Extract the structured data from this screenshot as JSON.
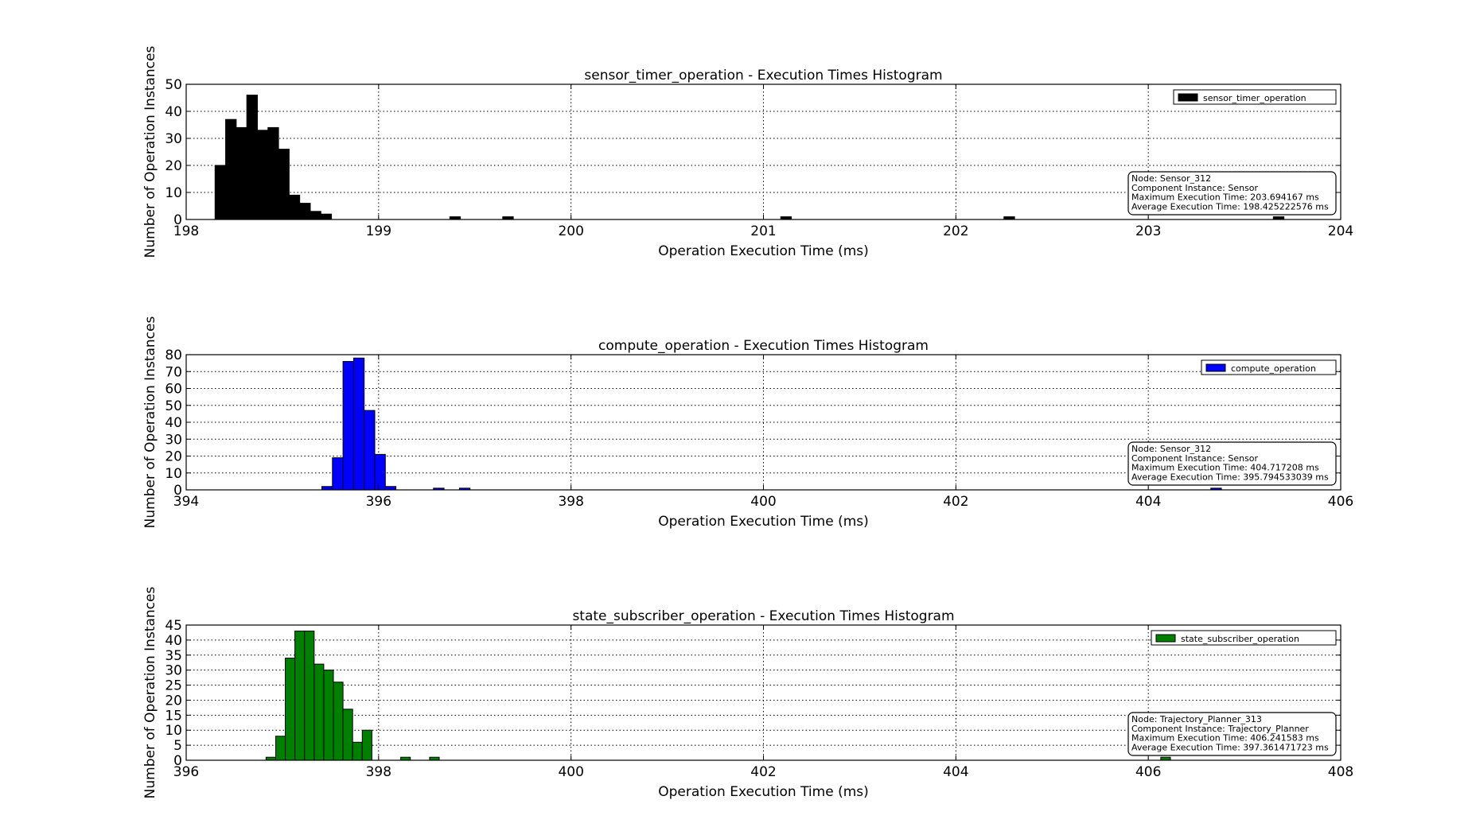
{
  "chart_data": [
    {
      "type": "bar",
      "title": "sensor_timer_operation - Execution Times Histogram",
      "xlabel": "Operation Execution Time (ms)",
      "ylabel": "Number of Operation Instances",
      "xlim": [
        198,
        204
      ],
      "ylim": [
        0,
        50
      ],
      "xticks": [
        198,
        199,
        200,
        201,
        202,
        203,
        204
      ],
      "yticks": [
        0,
        10,
        20,
        30,
        40,
        50
      ],
      "grid": true,
      "legend_position": "top-right",
      "bin_width": 0.055,
      "series": [
        {
          "name": "sensor_timer_operation",
          "color": "#000000",
          "bins": [
            {
              "x": 198.15,
              "value": 20
            },
            {
              "x": 198.205,
              "value": 37
            },
            {
              "x": 198.26,
              "value": 34
            },
            {
              "x": 198.315,
              "value": 46
            },
            {
              "x": 198.37,
              "value": 33
            },
            {
              "x": 198.425,
              "value": 34
            },
            {
              "x": 198.48,
              "value": 26
            },
            {
              "x": 198.535,
              "value": 9
            },
            {
              "x": 198.59,
              "value": 6
            },
            {
              "x": 198.645,
              "value": 3
            },
            {
              "x": 198.7,
              "value": 2
            },
            {
              "x": 199.37,
              "value": 1
            },
            {
              "x": 199.645,
              "value": 1
            },
            {
              "x": 201.09,
              "value": 1
            },
            {
              "x": 202.25,
              "value": 1
            },
            {
              "x": 203.65,
              "value": 1
            }
          ]
        }
      ],
      "info_box": [
        "Node: Sensor_312",
        "Component Instance: Sensor",
        "Maximum Execution Time: 203.694167 ms",
        "Average Execution Time: 198.425222576 ms"
      ]
    },
    {
      "type": "bar",
      "title": "compute_operation - Execution Times Histogram",
      "xlabel": "Operation Execution Time (ms)",
      "ylabel": "Number of Operation Instances",
      "xlim": [
        394,
        406
      ],
      "ylim": [
        0,
        80
      ],
      "xticks": [
        394,
        396,
        398,
        400,
        402,
        404,
        406
      ],
      "yticks": [
        0,
        10,
        20,
        30,
        40,
        50,
        60,
        70,
        80
      ],
      "grid": true,
      "legend_position": "top-right",
      "bin_width": 0.11,
      "series": [
        {
          "name": "compute_operation",
          "color": "#0000ff",
          "bins": [
            {
              "x": 395.41,
              "value": 2
            },
            {
              "x": 395.52,
              "value": 19
            },
            {
              "x": 395.63,
              "value": 76
            },
            {
              "x": 395.74,
              "value": 78
            },
            {
              "x": 395.85,
              "value": 47
            },
            {
              "x": 395.96,
              "value": 21
            },
            {
              "x": 396.07,
              "value": 2
            },
            {
              "x": 396.57,
              "value": 1
            },
            {
              "x": 396.84,
              "value": 1
            },
            {
              "x": 404.65,
              "value": 1
            }
          ]
        }
      ],
      "info_box": [
        "Node: Sensor_312",
        "Component Instance: Sensor",
        "Maximum Execution Time: 404.717208 ms",
        "Average Execution Time: 395.794533039 ms"
      ]
    },
    {
      "type": "bar",
      "title": "state_subscriber_operation - Execution Times Histogram",
      "xlabel": "Operation Execution Time (ms)",
      "ylabel": "Number of Operation Instances",
      "xlim": [
        396,
        408
      ],
      "ylim": [
        0,
        45
      ],
      "xticks": [
        396,
        398,
        400,
        402,
        404,
        406,
        408
      ],
      "yticks": [
        0,
        5,
        10,
        15,
        20,
        25,
        30,
        35,
        40,
        45
      ],
      "grid": true,
      "legend_position": "top-right",
      "bin_width": 0.1,
      "series": [
        {
          "name": "state_subscriber_operation",
          "color": "#008000",
          "bins": [
            {
              "x": 396.83,
              "value": 1
            },
            {
              "x": 396.93,
              "value": 8
            },
            {
              "x": 397.03,
              "value": 34
            },
            {
              "x": 397.13,
              "value": 43
            },
            {
              "x": 397.23,
              "value": 43
            },
            {
              "x": 397.33,
              "value": 32
            },
            {
              "x": 397.43,
              "value": 30
            },
            {
              "x": 397.53,
              "value": 26
            },
            {
              "x": 397.63,
              "value": 17
            },
            {
              "x": 397.73,
              "value": 6
            },
            {
              "x": 397.83,
              "value": 10
            },
            {
              "x": 398.23,
              "value": 1
            },
            {
              "x": 398.53,
              "value": 1
            },
            {
              "x": 406.13,
              "value": 1
            }
          ]
        }
      ],
      "info_box": [
        "Node: Trajectory_Planner_313",
        "Component Instance: Trajectory_Planner",
        "Maximum Execution Time: 406.241583 ms",
        "Average Execution Time: 397.361471723 ms"
      ]
    }
  ]
}
